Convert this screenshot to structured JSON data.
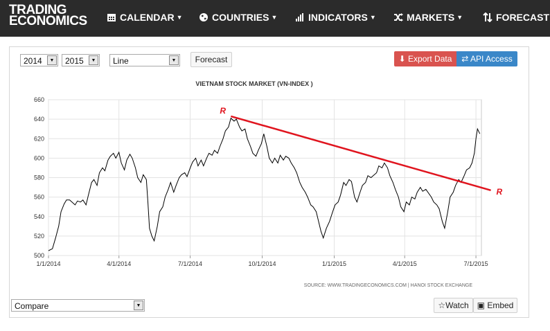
{
  "logo": {
    "line1": "TRADING",
    "line2": "ECONOMICS"
  },
  "nav": [
    {
      "label": "CALENDAR",
      "icon": "calendar-icon"
    },
    {
      "label": "COUNTRIES",
      "icon": "globe-icon"
    },
    {
      "label": "INDICATORS",
      "icon": "bar-chart-icon"
    },
    {
      "label": "MARKETS",
      "icon": "shuffle-icon"
    },
    {
      "label": "FORECAST",
      "icon": "sort-arrows-icon"
    }
  ],
  "toolbar": {
    "start_year": "2014",
    "end_year": "2015",
    "chart_type": "Line",
    "forecast_label": "Forecast",
    "export_label": "Export Data",
    "api_label": "API Access"
  },
  "footer": {
    "compare_label": "Compare",
    "watch_label": "Watch",
    "embed_label": "Embed"
  },
  "colors": {
    "nav_bg": "#2b2b2b",
    "export": "#d9534f",
    "api": "#3a87c8",
    "trend": "#e0141e",
    "series": "#000000"
  },
  "chart_data": {
    "type": "line",
    "title": "VIETNAM STOCK MARKET (VN-INDEX )",
    "source": "SOURCE:  WWW.TRADINGECONOMICS.COM   |   HANOI  STOCK  EXCHANGE",
    "xlabel": "",
    "ylabel": "",
    "ylim": [
      500,
      660
    ],
    "yticks": [
      "500",
      "520",
      "540",
      "560",
      "580",
      "600",
      "620",
      "640",
      "660"
    ],
    "xticks": [
      "1/1/2014",
      "4/1/2014",
      "7/1/2014",
      "10/1/2014",
      "1/1/2015",
      "4/1/2015",
      "7/1/2015"
    ],
    "xrange": [
      "2014-01-01",
      "2015-07-08"
    ],
    "grid": true,
    "series": [
      {
        "name": "",
        "points": [
          [
            "2014-01-01",
            505
          ],
          [
            "2014-01-06",
            507
          ],
          [
            "2014-01-10",
            518
          ],
          [
            "2014-01-14",
            530
          ],
          [
            "2014-01-17",
            545
          ],
          [
            "2014-01-21",
            553
          ],
          [
            "2014-01-24",
            557
          ],
          [
            "2014-01-28",
            557
          ],
          [
            "2014-02-04",
            552
          ],
          [
            "2014-02-07",
            556
          ],
          [
            "2014-02-11",
            555
          ],
          [
            "2014-02-14",
            557
          ],
          [
            "2014-02-18",
            552
          ],
          [
            "2014-02-21",
            562
          ],
          [
            "2014-02-25",
            575
          ],
          [
            "2014-02-28",
            578
          ],
          [
            "2014-03-04",
            572
          ],
          [
            "2014-03-07",
            585
          ],
          [
            "2014-03-11",
            590
          ],
          [
            "2014-03-14",
            587
          ],
          [
            "2014-03-18",
            598
          ],
          [
            "2014-03-21",
            602
          ],
          [
            "2014-03-25",
            605
          ],
          [
            "2014-03-28",
            600
          ],
          [
            "2014-04-01",
            606
          ],
          [
            "2014-04-04",
            595
          ],
          [
            "2014-04-08",
            588
          ],
          [
            "2014-04-11",
            598
          ],
          [
            "2014-04-15",
            604
          ],
          [
            "2014-04-18",
            600
          ],
          [
            "2014-04-22",
            590
          ],
          [
            "2014-04-25",
            580
          ],
          [
            "2014-04-29",
            575
          ],
          [
            "2014-05-02",
            583
          ],
          [
            "2014-05-06",
            578
          ],
          [
            "2014-05-08",
            555
          ],
          [
            "2014-05-10",
            528
          ],
          [
            "2014-05-13",
            520
          ],
          [
            "2014-05-16",
            515
          ],
          [
            "2014-05-20",
            530
          ],
          [
            "2014-05-23",
            545
          ],
          [
            "2014-05-27",
            550
          ],
          [
            "2014-05-30",
            560
          ],
          [
            "2014-06-03",
            568
          ],
          [
            "2014-06-06",
            575
          ],
          [
            "2014-06-10",
            565
          ],
          [
            "2014-06-13",
            572
          ],
          [
            "2014-06-17",
            580
          ],
          [
            "2014-06-20",
            583
          ],
          [
            "2014-06-24",
            585
          ],
          [
            "2014-06-27",
            581
          ],
          [
            "2014-07-01",
            590
          ],
          [
            "2014-07-04",
            596
          ],
          [
            "2014-07-08",
            600
          ],
          [
            "2014-07-11",
            592
          ],
          [
            "2014-07-15",
            598
          ],
          [
            "2014-07-18",
            592
          ],
          [
            "2014-07-22",
            600
          ],
          [
            "2014-07-25",
            605
          ],
          [
            "2014-07-29",
            603
          ],
          [
            "2014-08-01",
            608
          ],
          [
            "2014-08-05",
            605
          ],
          [
            "2014-08-08",
            612
          ],
          [
            "2014-08-12",
            620
          ],
          [
            "2014-08-15",
            628
          ],
          [
            "2014-08-19",
            632
          ],
          [
            "2014-08-22",
            641
          ],
          [
            "2014-08-26",
            638
          ],
          [
            "2014-08-29",
            640
          ],
          [
            "2014-09-02",
            632
          ],
          [
            "2014-09-05",
            628
          ],
          [
            "2014-09-09",
            630
          ],
          [
            "2014-09-12",
            620
          ],
          [
            "2014-09-16",
            612
          ],
          [
            "2014-09-19",
            605
          ],
          [
            "2014-09-23",
            602
          ],
          [
            "2014-09-26",
            608
          ],
          [
            "2014-09-30",
            615
          ],
          [
            "2014-10-03",
            625
          ],
          [
            "2014-10-07",
            612
          ],
          [
            "2014-10-10",
            600
          ],
          [
            "2014-10-14",
            595
          ],
          [
            "2014-10-17",
            600
          ],
          [
            "2014-10-21",
            595
          ],
          [
            "2014-10-24",
            603
          ],
          [
            "2014-10-28",
            598
          ],
          [
            "2014-10-31",
            602
          ],
          [
            "2014-11-04",
            600
          ],
          [
            "2014-11-07",
            595
          ],
          [
            "2014-11-11",
            590
          ],
          [
            "2014-11-14",
            585
          ],
          [
            "2014-11-18",
            575
          ],
          [
            "2014-11-21",
            570
          ],
          [
            "2014-11-25",
            565
          ],
          [
            "2014-11-28",
            560
          ],
          [
            "2014-12-02",
            552
          ],
          [
            "2014-12-05",
            550
          ],
          [
            "2014-12-09",
            545
          ],
          [
            "2014-12-12",
            535
          ],
          [
            "2014-12-15",
            525
          ],
          [
            "2014-12-18",
            518
          ],
          [
            "2014-12-22",
            528
          ],
          [
            "2014-12-26",
            535
          ],
          [
            "2014-12-30",
            545
          ],
          [
            "2015-01-02",
            552
          ],
          [
            "2015-01-06",
            555
          ],
          [
            "2015-01-09",
            562
          ],
          [
            "2015-01-13",
            575
          ],
          [
            "2015-01-16",
            572
          ],
          [
            "2015-01-20",
            578
          ],
          [
            "2015-01-23",
            576
          ],
          [
            "2015-01-27",
            560
          ],
          [
            "2015-01-30",
            555
          ],
          [
            "2015-02-03",
            565
          ],
          [
            "2015-02-06",
            572
          ],
          [
            "2015-02-10",
            575
          ],
          [
            "2015-02-13",
            582
          ],
          [
            "2015-02-17",
            580
          ],
          [
            "2015-02-24",
            585
          ],
          [
            "2015-02-27",
            592
          ],
          [
            "2015-03-03",
            590
          ],
          [
            "2015-03-06",
            595
          ],
          [
            "2015-03-10",
            590
          ],
          [
            "2015-03-13",
            582
          ],
          [
            "2015-03-17",
            575
          ],
          [
            "2015-03-20",
            568
          ],
          [
            "2015-03-24",
            560
          ],
          [
            "2015-03-27",
            550
          ],
          [
            "2015-03-31",
            545
          ],
          [
            "2015-04-03",
            555
          ],
          [
            "2015-04-07",
            552
          ],
          [
            "2015-04-10",
            560
          ],
          [
            "2015-04-14",
            558
          ],
          [
            "2015-04-17",
            565
          ],
          [
            "2015-04-21",
            570
          ],
          [
            "2015-04-24",
            566
          ],
          [
            "2015-04-28",
            568
          ],
          [
            "2015-05-05",
            560
          ],
          [
            "2015-05-08",
            555
          ],
          [
            "2015-05-12",
            552
          ],
          [
            "2015-05-15",
            548
          ],
          [
            "2015-05-19",
            535
          ],
          [
            "2015-05-22",
            528
          ],
          [
            "2015-05-26",
            545
          ],
          [
            "2015-05-29",
            560
          ],
          [
            "2015-06-02",
            565
          ],
          [
            "2015-06-05",
            572
          ],
          [
            "2015-06-09",
            578
          ],
          [
            "2015-06-12",
            575
          ],
          [
            "2015-06-16",
            582
          ],
          [
            "2015-06-19",
            588
          ],
          [
            "2015-06-23",
            590
          ],
          [
            "2015-06-26",
            595
          ],
          [
            "2015-06-29",
            605
          ],
          [
            "2015-07-01",
            620
          ],
          [
            "2015-07-03",
            630
          ],
          [
            "2015-07-06",
            625
          ]
        ]
      }
    ],
    "trendline": {
      "from": [
        "2014-08-22",
        643
      ],
      "to": [
        "2015-07-20",
        567
      ],
      "start_label": "R",
      "end_label": "R"
    }
  }
}
